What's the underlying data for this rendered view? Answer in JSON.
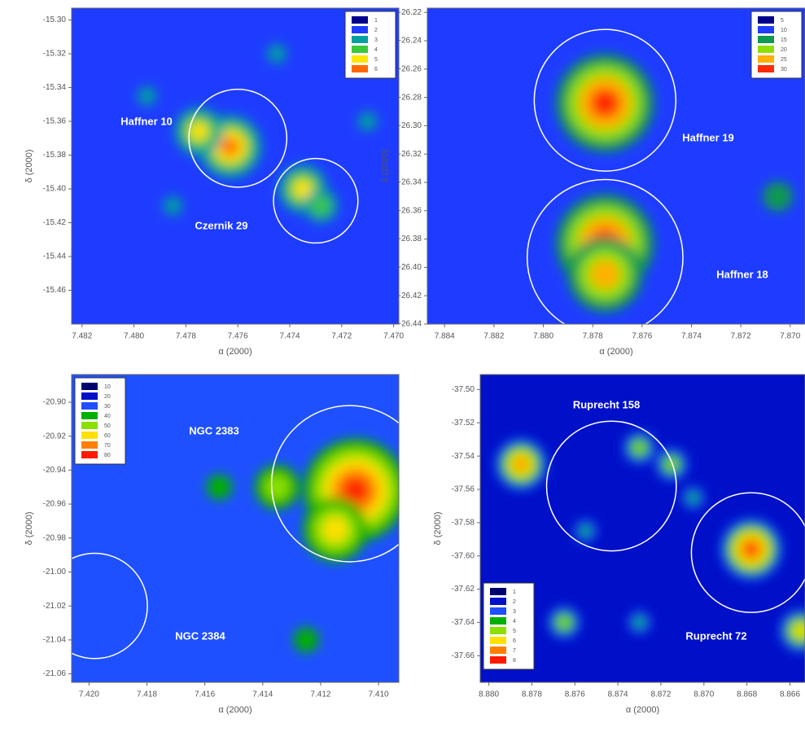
{
  "chart_data": [
    {
      "type": "heatmap",
      "x_label": "α (2000)",
      "y_label": "δ (2000)",
      "xlim": [
        7.4824,
        7.4698
      ],
      "ylim": [
        -15.48,
        -15.293
      ],
      "xticks": [
        7.482,
        {
          "value": 7.48,
          "label": "7.480"
        },
        7.478,
        7.476,
        7.474,
        7.472,
        {
          "value": 7.47,
          "label": "7.470"
        }
      ],
      "yticks": [
        {
          "value": -15.3,
          "label": "-15.30"
        },
        -15.32,
        -15.34,
        -15.36,
        -15.38,
        {
          "value": -15.4,
          "label": "-15.40"
        },
        -15.42,
        -15.44,
        -15.46
      ],
      "levels": [
        1,
        2,
        3,
        4,
        5,
        6
      ],
      "colors": [
        "#00008b",
        "#1e3cff",
        "#00a0a0",
        "#3cc83c",
        "#ffe600",
        "#ff6a00"
      ],
      "base_level": 2,
      "legend": "upper right",
      "peaks": [
        {
          "x": 7.4763,
          "y": -15.375,
          "level": 6
        },
        {
          "x": 7.4775,
          "y": -15.366,
          "level": 5
        },
        {
          "x": 7.4735,
          "y": -15.4,
          "level": 5
        },
        {
          "x": 7.4728,
          "y": -15.41,
          "level": 4
        },
        {
          "x": 7.4795,
          "y": -15.345,
          "level": 3
        },
        {
          "x": 7.4745,
          "y": -15.32,
          "level": 3
        },
        {
          "x": 7.471,
          "y": -15.36,
          "level": 3
        },
        {
          "x": 7.4785,
          "y": -15.41,
          "level": 3
        }
      ],
      "clusters": [
        {
          "name": "Haffner 10",
          "x": 7.476,
          "y": -15.37,
          "radius": 0.029
        },
        {
          "name": "Czernik 29",
          "x": 7.473,
          "y": -15.407,
          "radius": 0.025
        }
      ]
    },
    {
      "type": "heatmap",
      "x_label": "α (2000)",
      "y_label": "δ (2000)",
      "xlim": [
        7.8847,
        7.8694
      ],
      "ylim": [
        -26.44,
        -26.217
      ],
      "xticks": [
        7.884,
        7.882,
        {
          "value": 7.88,
          "label": "7.880"
        },
        7.878,
        7.876,
        7.874,
        7.872,
        {
          "value": 7.87,
          "label": "7.870"
        }
      ],
      "yticks": [
        -26.22,
        -26.24,
        -26.26,
        -26.28,
        {
          "value": -26.3,
          "label": "-26.30"
        },
        -26.32,
        -26.34,
        -26.36,
        -26.38,
        {
          "value": -26.4,
          "label": "-26.40"
        },
        -26.42,
        -26.44
      ],
      "levels": [
        5,
        10,
        15,
        20,
        25,
        30
      ],
      "colors": [
        "#00008b",
        "#1e3cff",
        "#0a9a50",
        "#8ee000",
        "#ffb000",
        "#ff2a00"
      ],
      "base_level": 2,
      "legend": "upper right",
      "peaks": [
        {
          "x": 7.8775,
          "y": -26.284,
          "level": 30
        },
        {
          "x": 7.8775,
          "y": -26.383,
          "level": 30
        },
        {
          "x": 7.8775,
          "y": -26.405,
          "level": 25
        },
        {
          "x": 7.8705,
          "y": -26.35,
          "level": 15
        }
      ],
      "clusters": [
        {
          "name": "Haffner 19",
          "x": 7.8775,
          "y": -26.282,
          "radius": 0.05
        },
        {
          "name": "Haffner 18",
          "x": 7.8775,
          "y": -26.393,
          "radius": 0.055
        }
      ]
    },
    {
      "type": "heatmap",
      "x_label": "α (2000)",
      "y_label": "δ (2000)",
      "xlim": [
        7.4206,
        7.4093
      ],
      "ylim": [
        -21.065,
        -20.8837
      ],
      "xticks": [
        {
          "value": 7.42,
          "label": "7.420"
        },
        7.418,
        7.416,
        7.414,
        7.412,
        {
          "value": 7.41,
          "label": "7.410"
        }
      ],
      "yticks": [
        {
          "value": -20.9,
          "label": "-20.90"
        },
        -20.92,
        -20.94,
        -20.96,
        -20.98,
        {
          "value": -21,
          "label": "-21.00"
        },
        -21.02,
        -21.04,
        -21.06
      ],
      "levels": [
        10,
        20,
        30,
        40,
        50,
        60,
        70,
        80
      ],
      "colors": [
        "#00006e",
        "#0010c8",
        "#1e50ff",
        "#00b000",
        "#8ae000",
        "#ffe000",
        "#ff8000",
        "#ff1a00"
      ],
      "base_level": 3,
      "legend": "upper left",
      "peaks": [
        {
          "x": 7.4108,
          "y": -20.952,
          "level": 80
        },
        {
          "x": 7.4115,
          "y": -20.975,
          "level": 60
        },
        {
          "x": 7.4135,
          "y": -20.95,
          "level": 50
        },
        {
          "x": 7.4155,
          "y": -20.95,
          "level": 40
        },
        {
          "x": 7.4125,
          "y": -21.04,
          "level": 40
        },
        {
          "x": 7.4085,
          "y": -21,
          "level": 40
        }
      ],
      "clusters": [
        {
          "name": "NGC 2383",
          "x": 7.411,
          "y": -20.948,
          "radius": 0.046
        },
        {
          "name": "NGC 2384",
          "x": 7.4198,
          "y": -21.02,
          "radius": 0.031
        }
      ]
    },
    {
      "type": "heatmap",
      "x_label": "α (2000)",
      "y_label": "δ (2000)",
      "xlim": [
        8.8804,
        8.8653
      ],
      "ylim": [
        -37.676,
        -37.491
      ],
      "xticks": [
        {
          "value": 8.88,
          "label": "8.880"
        },
        8.878,
        8.876,
        8.874,
        8.872,
        {
          "value": 8.87,
          "label": "8.870"
        },
        8.868,
        8.866
      ],
      "yticks": [
        {
          "value": -37.5,
          "label": "-37.50"
        },
        -37.52,
        -37.54,
        -37.56,
        -37.58,
        {
          "value": -37.6,
          "label": "-37.60"
        },
        -37.62,
        -37.64,
        -37.66
      ],
      "levels": [
        1,
        2,
        3,
        4,
        5,
        6,
        7,
        8
      ],
      "colors": [
        "#00006e",
        "#0010c8",
        "#1e50ff",
        "#00b000",
        "#8ae000",
        "#ffe000",
        "#ff8000",
        "#ff1a00"
      ],
      "base_level": 2,
      "legend": "lower left",
      "peaks": [
        {
          "x": 8.8678,
          "y": -37.596,
          "level": 8
        },
        {
          "x": 8.8785,
          "y": -37.545,
          "level": 7
        },
        {
          "x": 8.873,
          "y": -37.535,
          "level": 5
        },
        {
          "x": 8.8715,
          "y": -37.545,
          "level": 5
        },
        {
          "x": 8.8755,
          "y": -37.585,
          "level": 4
        },
        {
          "x": 8.8655,
          "y": -37.645,
          "level": 6
        },
        {
          "x": 8.8765,
          "y": -37.64,
          "level": 5
        },
        {
          "x": 8.8705,
          "y": -37.565,
          "level": 4
        },
        {
          "x": 8.873,
          "y": -37.64,
          "level": 4
        }
      ],
      "clusters": [
        {
          "name": "Ruprecht 158",
          "x": 8.8743,
          "y": -37.558,
          "radius": 0.039
        },
        {
          "name": "Ruprecht 72",
          "x": 8.8678,
          "y": -37.598,
          "radius": 0.036
        }
      ]
    }
  ]
}
